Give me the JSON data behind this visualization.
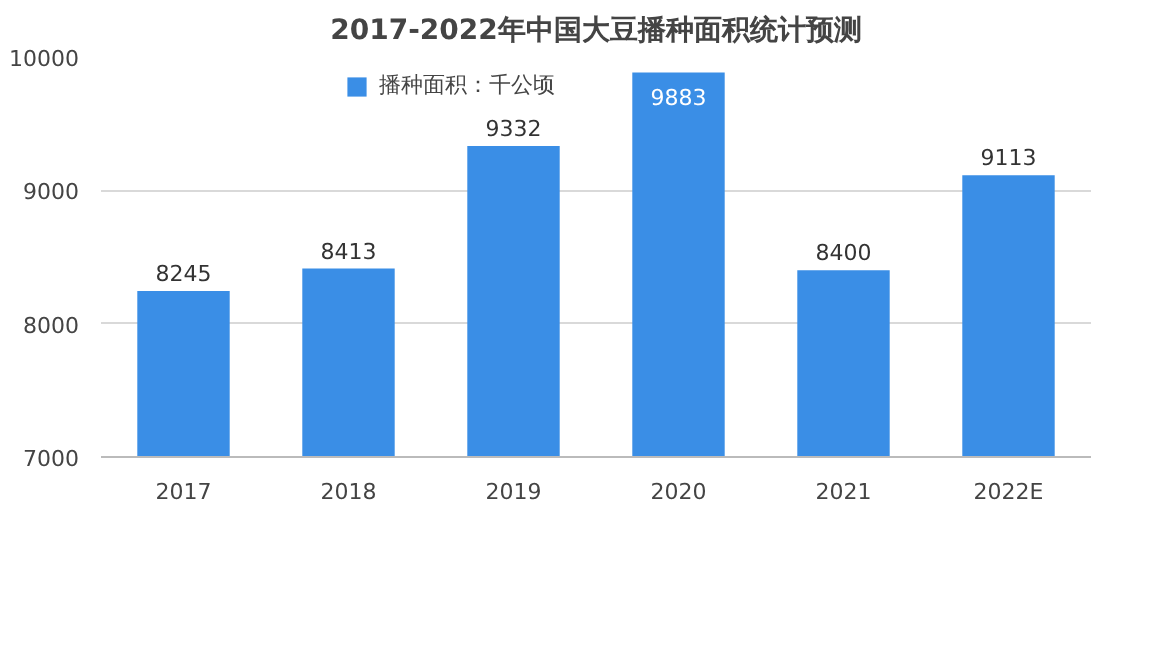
{
  "chart_data": {
    "type": "bar",
    "title": "2017-2022年中国大豆播种面积统计预测",
    "categories": [
      "2017",
      "2018",
      "2019",
      "2020",
      "2021",
      "2022E"
    ],
    "series": [
      {
        "name": "播种面积：千公顷",
        "color": "#3a8ee6",
        "values": [
          8245,
          8413,
          9332,
          9883,
          8400,
          9113
        ]
      }
    ],
    "ylim": [
      7000,
      10000
    ],
    "yticks": [
      7000,
      8000,
      9000,
      10000
    ],
    "grid": "y",
    "legend": "top",
    "data_labels": true
  }
}
